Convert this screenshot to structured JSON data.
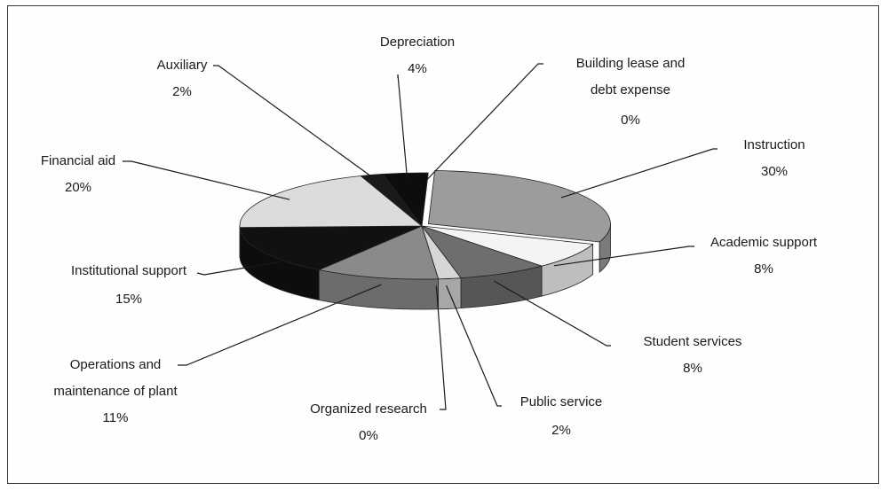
{
  "chart_data": {
    "type": "pie",
    "title": "",
    "categories": [
      "Instruction",
      "Academic support",
      "Student services",
      "Public service",
      "Organized research",
      "Operations and maintenance of plant",
      "Institutional support",
      "Financial aid",
      "Auxiliary",
      "Depreciation",
      "Building lease and debt expense"
    ],
    "values": [
      30,
      8,
      8,
      2,
      0,
      11,
      15,
      20,
      2,
      4,
      0
    ],
    "value_labels": [
      "30%",
      "8%",
      "8%",
      "2%",
      "0%",
      "11%",
      "15%",
      "20%",
      "2%",
      "4%",
      "0%"
    ],
    "label_lines": [
      [
        "Instruction"
      ],
      [
        "Academic support"
      ],
      [
        "Student services"
      ],
      [
        "Public service"
      ],
      [
        "Organized research"
      ],
      [
        "Operations and",
        "maintenance of plant"
      ],
      [
        "Institutional support"
      ],
      [
        "Financial aid"
      ],
      [
        "Auxiliary"
      ],
      [
        "Depreciation"
      ],
      [
        "Building lease and",
        "debt expense"
      ]
    ],
    "slice_colors": [
      "#9c9c9c",
      "#f4f4f4",
      "#6e6e6e",
      "#d6d6d6",
      "#bdbdbd",
      "#8a8a8a",
      "#111111",
      "#dcdcdc",
      "#1a1a1a",
      "#0d0d0d",
      "#ffffff"
    ],
    "exploded": [
      "Instruction"
    ],
    "style": "3d-pie",
    "legend": "none"
  }
}
